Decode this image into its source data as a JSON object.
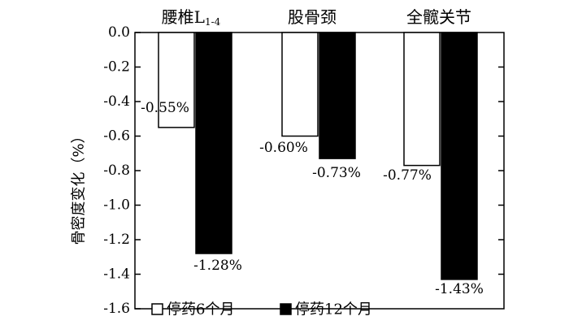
{
  "chart_data": {
    "type": "bar",
    "categories": [
      {
        "main": "腰椎L",
        "sub": "1-4"
      },
      {
        "main": "股骨颈",
        "sub": ""
      },
      {
        "main": "全髋关节",
        "sub": ""
      }
    ],
    "series": [
      {
        "name": "停药6个月",
        "color": "#ffffff",
        "values": [
          -0.55,
          -0.6,
          -0.77
        ],
        "labels": [
          "-0.55%",
          "-0.60%",
          "-0.77%"
        ]
      },
      {
        "name": "停药12个月",
        "color": "#000000",
        "values": [
          -1.28,
          -0.73,
          -1.43
        ],
        "labels": [
          "-1.28%",
          "-0.73%",
          "-1.43%"
        ]
      }
    ],
    "ylabel": "骨密度变化（%）",
    "ylim": [
      -1.6,
      0.0
    ],
    "yticks": [
      "0.0",
      "-0.2",
      "-0.4",
      "-0.6",
      "-0.8",
      "-1.0",
      "-1.2",
      "-1.4",
      "-1.6"
    ],
    "ytick_values": [
      0.0,
      -0.2,
      -0.4,
      -0.6,
      -0.8,
      -1.0,
      -1.2,
      -1.4,
      -1.6
    ],
    "legend_position": "bottom",
    "grid": false
  }
}
